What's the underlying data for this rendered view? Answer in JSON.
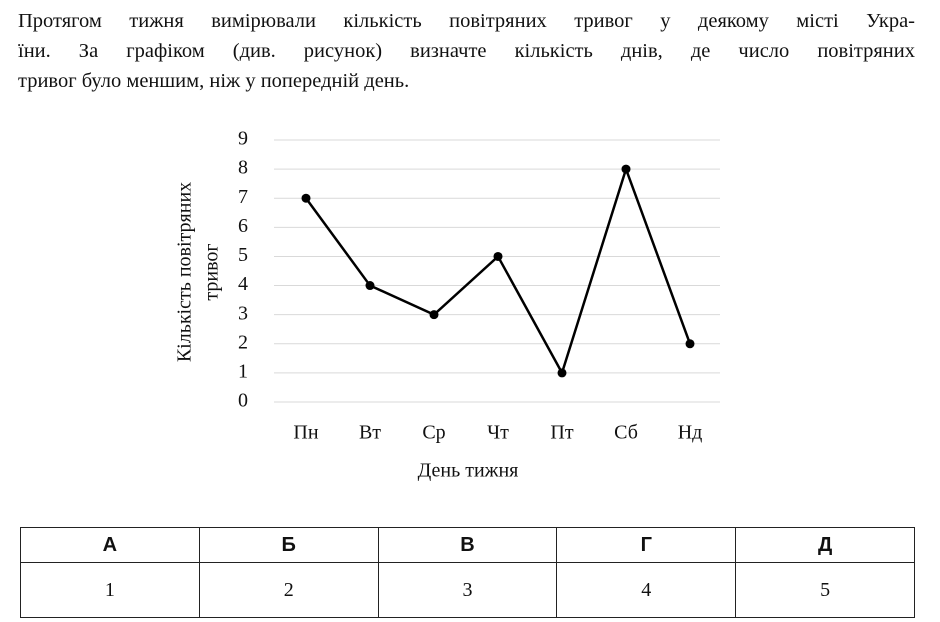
{
  "question": {
    "lines": [
      "Протягом тижня вимірювали кількість повітряних тривог у деякому місті Укра-",
      "їни. За графіком (див. рисунок) визначте кількість днів, де число повітряних",
      "тривог було меншим, ніж у попередній день."
    ]
  },
  "chart_data": {
    "type": "line",
    "ylabel": [
      "Кількість повітряних",
      "тривог"
    ],
    "xlabel": "День тижня",
    "categories": [
      "Пн",
      "Вт",
      "Ср",
      "Чт",
      "Пт",
      "Сб",
      "Нд"
    ],
    "values": [
      7,
      4,
      3,
      5,
      1,
      8,
      2
    ],
    "color": "#000000",
    "ylim": [
      0,
      9
    ],
    "yticks": [
      0,
      1,
      2,
      3,
      4,
      5,
      6,
      7,
      8,
      9
    ],
    "grid": true
  },
  "table": {
    "header": [
      "А",
      "Б",
      "В",
      "Г",
      "Д"
    ],
    "rows": [
      [
        1,
        2,
        3,
        4,
        5
      ]
    ]
  }
}
